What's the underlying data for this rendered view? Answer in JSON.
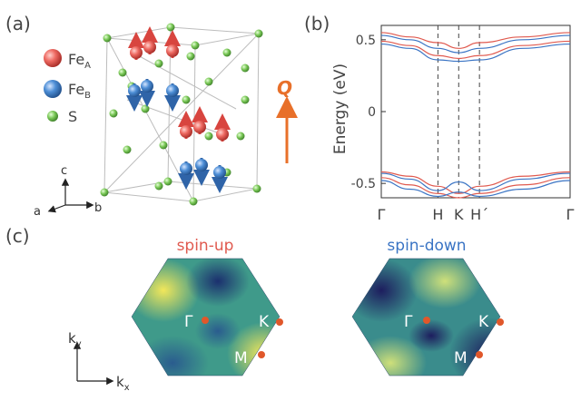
{
  "panel_labels": {
    "a": "(a)",
    "b": "(b)",
    "c": "(c)"
  },
  "legend": [
    {
      "symbol": "Fe",
      "subscript": "A",
      "color": "#e8595a"
    },
    {
      "symbol": "Fe",
      "subscript": "B",
      "color": "#3f7fc4"
    },
    {
      "symbol": "S",
      "subscript": "",
      "color": "#6cbf4a"
    }
  ],
  "axes_triad": {
    "c": "c",
    "a": "a",
    "b": "b"
  },
  "q_label": "Q",
  "colors": {
    "up": "#e05a4f",
    "down": "#3a74c4",
    "accent": "#e8702a",
    "point": "#e0572a"
  },
  "chart_data": {
    "type": "line",
    "title": "",
    "ylabel": "Energy (eV)",
    "ylim": [
      -0.6,
      0.6
    ],
    "yticks": [
      0.5,
      0,
      -0.5
    ],
    "ytick_labels": [
      "0.5",
      "0",
      "-0.5"
    ],
    "x_labels": [
      "Γ",
      "H",
      "K",
      "H´",
      "Γ"
    ],
    "x_label_positions": [
      0,
      0.3,
      0.41,
      0.52,
      1.0
    ],
    "vlines": [
      0.3,
      0.41,
      0.52
    ],
    "series": [
      {
        "spin": "up",
        "x": [
          0,
          0.15,
          0.3,
          0.41,
          0.52,
          0.75,
          1.0
        ],
        "y": [
          0.55,
          0.52,
          0.48,
          0.44,
          0.48,
          0.52,
          0.55
        ]
      },
      {
        "spin": "up",
        "x": [
          0,
          0.15,
          0.3,
          0.41,
          0.52,
          0.75,
          1.0
        ],
        "y": [
          0.49,
          0.46,
          0.39,
          0.37,
          0.39,
          0.46,
          0.49
        ]
      },
      {
        "spin": "up",
        "x": [
          0,
          0.15,
          0.3,
          0.41,
          0.52,
          0.75,
          1.0
        ],
        "y": [
          -0.42,
          -0.45,
          -0.52,
          -0.57,
          -0.52,
          -0.45,
          -0.42
        ]
      },
      {
        "spin": "up",
        "x": [
          0,
          0.15,
          0.3,
          0.41,
          0.52,
          0.75,
          1.0
        ],
        "y": [
          -0.46,
          -0.51,
          -0.57,
          -0.6,
          -0.57,
          -0.51,
          -0.46
        ]
      },
      {
        "spin": "down",
        "x": [
          0,
          0.15,
          0.3,
          0.41,
          0.52,
          0.75,
          1.0
        ],
        "y": [
          0.53,
          0.5,
          0.44,
          0.41,
          0.44,
          0.5,
          0.53
        ]
      },
      {
        "spin": "down",
        "x": [
          0,
          0.15,
          0.3,
          0.41,
          0.52,
          0.75,
          1.0
        ],
        "y": [
          0.47,
          0.44,
          0.36,
          0.35,
          0.36,
          0.44,
          0.47
        ]
      },
      {
        "spin": "down",
        "x": [
          0,
          0.15,
          0.3,
          0.41,
          0.52,
          0.75,
          1.0
        ],
        "y": [
          -0.43,
          -0.47,
          -0.55,
          -0.49,
          -0.55,
          -0.47,
          -0.43
        ]
      },
      {
        "spin": "down",
        "x": [
          0,
          0.15,
          0.3,
          0.41,
          0.52,
          0.75,
          1.0
        ],
        "y": [
          -0.48,
          -0.54,
          -0.59,
          -0.56,
          -0.59,
          -0.54,
          -0.48
        ]
      }
    ]
  },
  "bz_panels": [
    {
      "title": "spin-up",
      "title_color": "#e05a4f",
      "points": [
        "Γ",
        "K",
        "M"
      ]
    },
    {
      "title": "spin-down",
      "title_color": "#3a74c4",
      "points": [
        "Γ",
        "K",
        "M"
      ]
    }
  ],
  "k_axes": {
    "ky": "k",
    "ky_sub": "y",
    "kx": "k",
    "kx_sub": "x"
  }
}
